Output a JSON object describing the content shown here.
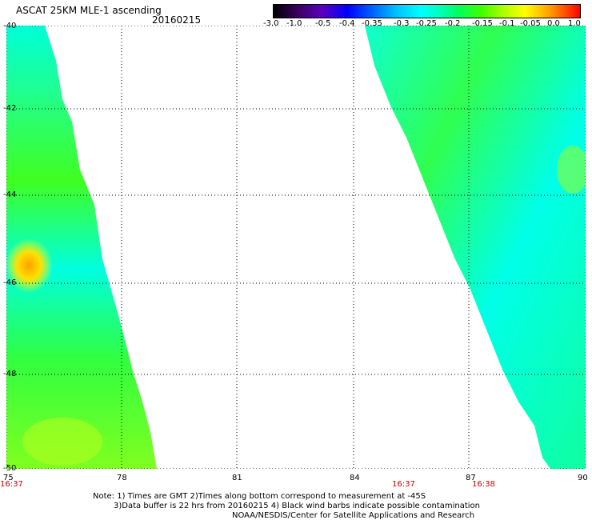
{
  "header": {
    "title": "ASCAT 25KM MLE-1 ascending",
    "date": "20160215"
  },
  "colorbar": {
    "labels": [
      "-3.0",
      "-1.0",
      "-0.5",
      "-0.4",
      "-0.35",
      "-0.3",
      "-0.25",
      "-0.2",
      "-0.15",
      "-0.1",
      "-0.05",
      "0.0",
      "1.0"
    ]
  },
  "axes": {
    "y_labels": [
      "-40",
      "-42",
      "-44",
      "-46",
      "-48",
      "-50"
    ],
    "x_labels": [
      "75",
      "78",
      "81",
      "84",
      "87",
      "90"
    ],
    "time_labels": [
      "16:37",
      "16:37",
      "16:38"
    ]
  },
  "notes": {
    "line1": "Note: 1) Times are GMT 2)Times along bottom correspond to measurement at -45S",
    "line2": "3)Data buffer is 22 hrs from 20160215 4) Black wind barbs indicate possible contamination",
    "line3": "NOAA/NESDIS/Center for Satellite Applications and Research"
  },
  "colors": {
    "time_label": "#d00000",
    "grid": "#000000"
  }
}
